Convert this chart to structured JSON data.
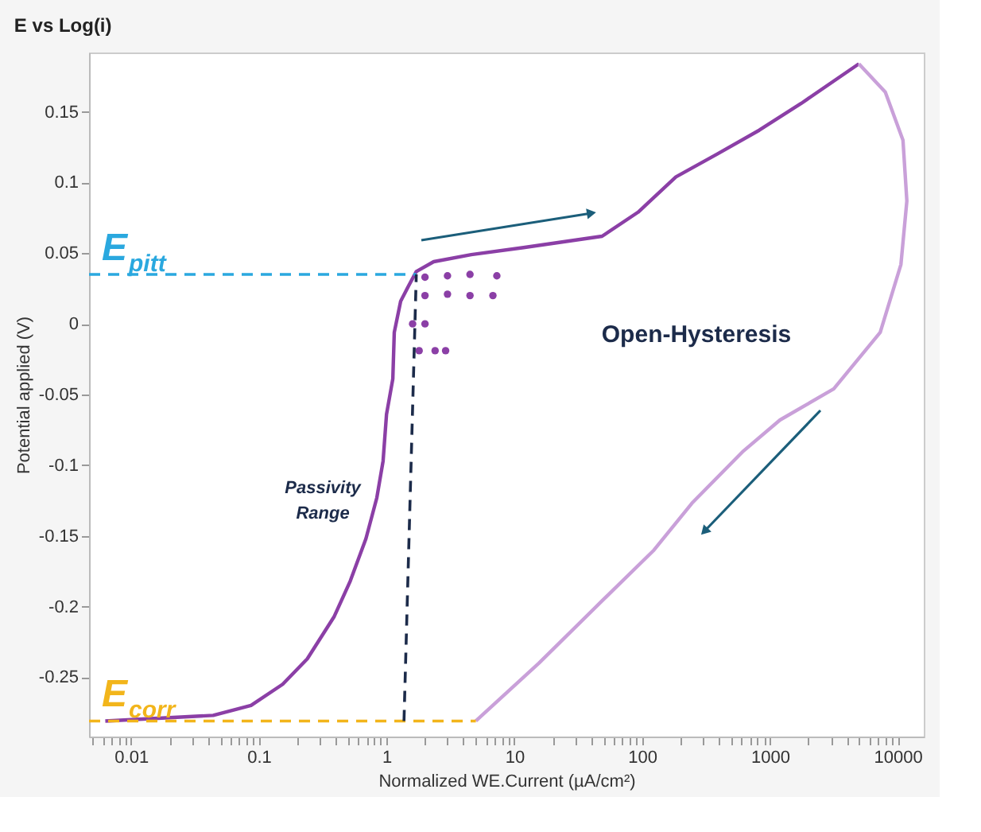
{
  "chart_data": {
    "type": "line",
    "title": "E vs Log(i)",
    "xlabel": "Normalized WE.Current (µA/cm²)",
    "ylabel": "Potential applied (V)",
    "log": "x",
    "xlim": [
      0.0047,
      16000
    ],
    "ylim": [
      -0.292,
      0.192
    ],
    "xticks": [
      {
        "value": 0.005,
        "label": null
      },
      {
        "value": 0.006,
        "label": null
      },
      {
        "value": 0.007,
        "label": null
      },
      {
        "value": 0.008,
        "label": null
      },
      {
        "value": 0.009,
        "label": null
      },
      0.01,
      {
        "value": 0.02,
        "label": null
      },
      {
        "value": 0.03,
        "label": null
      },
      {
        "value": 0.04,
        "label": null
      },
      {
        "value": 0.05,
        "label": null
      },
      {
        "value": 0.06,
        "label": null
      },
      {
        "value": 0.07,
        "label": null
      },
      {
        "value": 0.08,
        "label": null
      },
      {
        "value": 0.09,
        "label": null
      },
      0.1,
      {
        "value": 0.2,
        "label": null
      },
      {
        "value": 0.3,
        "label": null
      },
      {
        "value": 0.4,
        "label": null
      },
      {
        "value": 0.5,
        "label": null
      },
      {
        "value": 0.6,
        "label": null
      },
      {
        "value": 0.7,
        "label": null
      },
      {
        "value": 0.8,
        "label": null
      },
      {
        "value": 0.9,
        "label": null
      },
      1,
      {
        "value": 2,
        "label": null
      },
      {
        "value": 3,
        "label": null
      },
      {
        "value": 4,
        "label": null
      },
      {
        "value": 5,
        "label": null
      },
      {
        "value": 6,
        "label": null
      },
      {
        "value": 7,
        "label": null
      },
      {
        "value": 8,
        "label": null
      },
      {
        "value": 9,
        "label": null
      },
      10,
      {
        "value": 20,
        "label": null
      },
      {
        "value": 30,
        "label": null
      },
      {
        "value": 40,
        "label": null
      },
      {
        "value": 50,
        "label": null
      },
      {
        "value": 60,
        "label": null
      },
      {
        "value": 70,
        "label": null
      },
      {
        "value": 80,
        "label": null
      },
      {
        "value": 90,
        "label": null
      },
      100,
      {
        "value": 200,
        "label": null
      },
      {
        "value": 300,
        "label": null
      },
      {
        "value": 400,
        "label": null
      },
      {
        "value": 500,
        "label": null
      },
      {
        "value": 600,
        "label": null
      },
      {
        "value": 700,
        "label": null
      },
      {
        "value": 800,
        "label": null
      },
      {
        "value": 900,
        "label": null
      },
      1000,
      {
        "value": 2000,
        "label": null
      },
      {
        "value": 3000,
        "label": null
      },
      {
        "value": 4000,
        "label": null
      },
      {
        "value": 5000,
        "label": null
      },
      {
        "value": 6000,
        "label": null
      },
      {
        "value": 7000,
        "label": null
      },
      {
        "value": 8000,
        "label": null
      },
      {
        "value": 9000,
        "label": null
      },
      10000
    ],
    "yticks": [
      -0.25,
      -0.2,
      -0.15,
      -0.1,
      -0.05,
      0,
      0.05,
      0.1,
      0.15
    ],
    "grid": false,
    "legend": false,
    "marker": "none",
    "series": [
      {
        "color": "#8b3fa6",
        "line_style": "solid",
        "x": [
          0.0063,
          0.044,
          0.087,
          0.154,
          0.24,
          0.39,
          0.52,
          0.69,
          0.84,
          0.94,
          1.0,
          1.12,
          1.15,
          1.29,
          1.49,
          1.71,
          2.34,
          4.6,
          11.8,
          48.6,
          93,
          184,
          385,
          825,
          1760,
          4970
        ],
        "values": [
          -0.281,
          -0.277,
          -0.27,
          -0.255,
          -0.237,
          -0.207,
          -0.182,
          -0.152,
          -0.123,
          -0.097,
          -0.064,
          -0.039,
          -0.006,
          0.016,
          0.027,
          0.037,
          0.044,
          0.049,
          0.054,
          0.062,
          0.079,
          0.104,
          0.12,
          0.137,
          0.156,
          0.184
        ]
      },
      {
        "color": "#c9a0d9",
        "line_style": "solid",
        "x": [
          4970,
          8000,
          11000,
          11800,
          10600,
          7300,
          3160,
          1200,
          620,
          245,
          124,
          48.6,
          15.6,
          5.0
        ],
        "values": [
          0.184,
          0.164,
          0.13,
          0.087,
          0.042,
          -0.006,
          -0.046,
          -0.068,
          -0.09,
          -0.127,
          -0.16,
          -0.196,
          -0.24,
          -0.281
        ]
      },
      {
        "type": "scatter",
        "marker": "circle",
        "color": "#8b3fa6",
        "x": [
          2,
          3,
          4.5,
          7.3,
          2,
          3,
          4.5,
          6.8,
          1.6,
          2.0,
          1.8,
          2.4,
          2.9
        ],
        "values": [
          0.033,
          0.034,
          0.035,
          0.034,
          0.02,
          0.021,
          0.02,
          0.02,
          0.0,
          0.0,
          -0.019,
          -0.019,
          -0.019
        ]
      },
      {
        "name": "E$_{pitt}$",
        "color": "#2aa8df",
        "line_style": "dashed",
        "x": [
          0.0047,
          1.71
        ],
        "values": [
          0.035,
          0.035
        ]
      },
      {
        "name": "E$_{corr}$",
        "color": "#f2b51b",
        "line_style": "dashed",
        "x": [
          0.0047,
          5.0
        ],
        "values": [
          -0.281,
          -0.281
        ]
      },
      {
        "color": "#1c2b4a",
        "line_style": "dashed",
        "x": [
          1.37,
          1.71
        ],
        "values": [
          -0.281,
          0.035
        ]
      }
    ],
    "annotations": [
      "Passivity Range",
      "Open-Hysteresis"
    ]
  }
}
